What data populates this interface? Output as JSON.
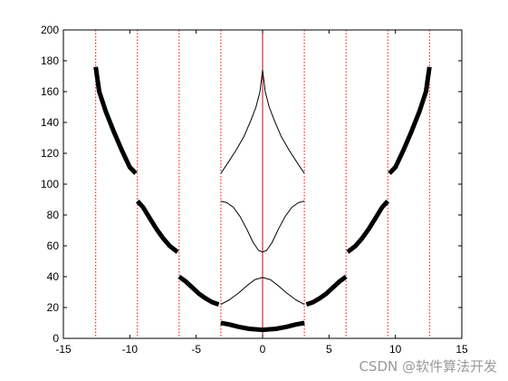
{
  "chart_data": {
    "type": "line",
    "title": "",
    "xlabel": "",
    "ylabel": "",
    "xlim": [
      -15,
      15
    ],
    "ylim": [
      0,
      200
    ],
    "x_ticks": [
      -15,
      -10,
      -5,
      0,
      5,
      10,
      15
    ],
    "y_ticks": [
      0,
      20,
      40,
      60,
      80,
      100,
      120,
      140,
      160,
      180,
      200
    ],
    "grid": false,
    "legend": "none",
    "vertical_lines": {
      "style": "dotted",
      "color": "#ff0000",
      "x": [
        -12.566,
        -9.425,
        -6.283,
        -3.142,
        3.142,
        6.283,
        9.425,
        12.566
      ]
    },
    "center_line": {
      "x": 0,
      "color": "#cc0000",
      "style": "solid"
    },
    "series": [
      {
        "style": "thick",
        "color": "#000000",
        "segments": [
          [
            [
              -12.566,
              176
            ],
            [
              -12.3,
              160
            ],
            [
              -11.8,
              147
            ],
            [
              -11.2,
              134
            ],
            [
              -10.6,
              122
            ],
            [
              -10.0,
              111
            ],
            [
              -9.55,
              107
            ]
          ],
          [
            [
              -9.425,
              89
            ],
            [
              -9.0,
              85
            ],
            [
              -8.5,
              78
            ],
            [
              -8.0,
              71
            ],
            [
              -7.5,
              65
            ],
            [
              -7.0,
              60
            ],
            [
              -6.4,
              56
            ]
          ],
          [
            [
              -6.283,
              40
            ],
            [
              -5.8,
              37
            ],
            [
              -5.3,
              33
            ],
            [
              -4.8,
              29
            ],
            [
              -4.3,
              26
            ],
            [
              -3.8,
              23.5
            ],
            [
              -3.3,
              22
            ]
          ],
          [
            [
              -3.142,
              10
            ],
            [
              -2.5,
              9
            ],
            [
              -1.8,
              7.5
            ],
            [
              -1.0,
              6.2
            ],
            [
              0,
              5.5
            ],
            [
              1.0,
              6.2
            ],
            [
              1.8,
              7.5
            ],
            [
              2.5,
              9
            ],
            [
              3.142,
              10
            ]
          ],
          [
            [
              3.3,
              22
            ],
            [
              3.8,
              23.5
            ],
            [
              4.3,
              26
            ],
            [
              4.8,
              29
            ],
            [
              5.3,
              33
            ],
            [
              5.8,
              37
            ],
            [
              6.283,
              40
            ]
          ],
          [
            [
              6.4,
              56
            ],
            [
              7.0,
              60
            ],
            [
              7.5,
              65
            ],
            [
              8.0,
              71
            ],
            [
              8.5,
              78
            ],
            [
              9.0,
              85
            ],
            [
              9.425,
              89
            ]
          ],
          [
            [
              9.55,
              107
            ],
            [
              10.0,
              111
            ],
            [
              10.6,
              122
            ],
            [
              11.2,
              134
            ],
            [
              11.8,
              147
            ],
            [
              12.3,
              160
            ],
            [
              12.566,
              176
            ]
          ]
        ]
      },
      {
        "style": "thin",
        "color": "#000000",
        "segments": [
          [
            [
              -3.142,
              22
            ],
            [
              -2.5,
              25
            ],
            [
              -1.8,
              29.5
            ],
            [
              -1.2,
              34
            ],
            [
              -0.6,
              38
            ],
            [
              0,
              39.5
            ],
            [
              0.6,
              38
            ],
            [
              1.2,
              34
            ],
            [
              1.8,
              29.5
            ],
            [
              2.5,
              25
            ],
            [
              3.142,
              22
            ]
          ],
          [
            [
              -3.142,
              89
            ],
            [
              -2.7,
              88
            ],
            [
              -2.2,
              85
            ],
            [
              -1.7,
              79
            ],
            [
              -1.2,
              71
            ],
            [
              -0.7,
              62
            ],
            [
              -0.3,
              57
            ],
            [
              0,
              56
            ],
            [
              0.3,
              57
            ],
            [
              0.7,
              62
            ],
            [
              1.2,
              71
            ],
            [
              1.7,
              79
            ],
            [
              2.2,
              85
            ],
            [
              2.7,
              88
            ],
            [
              3.142,
              89
            ]
          ],
          [
            [
              -3.142,
              107
            ],
            [
              -2.6,
              114
            ],
            [
              -2.0,
              122
            ],
            [
              -1.4,
              131
            ],
            [
              -0.9,
              141
            ],
            [
              -0.5,
              150
            ],
            [
              -0.2,
              160
            ],
            [
              0,
              174
            ],
            [
              0.2,
              160
            ],
            [
              0.5,
              150
            ],
            [
              0.9,
              141
            ],
            [
              1.4,
              131
            ],
            [
              2.0,
              122
            ],
            [
              2.6,
              114
            ],
            [
              3.142,
              107
            ]
          ]
        ]
      }
    ]
  },
  "watermark": "CSDN @软件算法开发"
}
